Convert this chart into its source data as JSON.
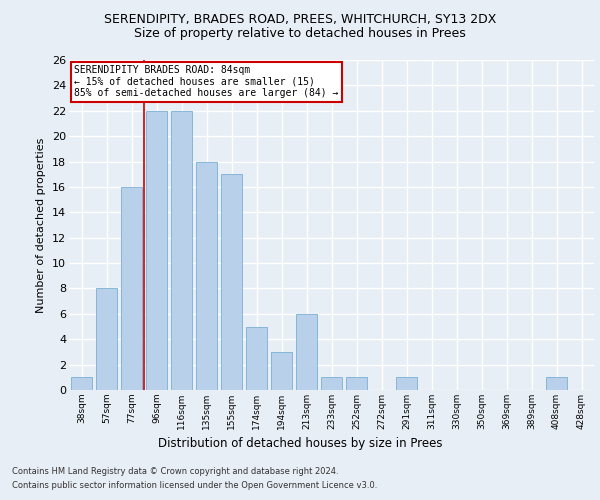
{
  "title1": "SERENDIPITY, BRADES ROAD, PREES, WHITCHURCH, SY13 2DX",
  "title2": "Size of property relative to detached houses in Prees",
  "xlabel": "Distribution of detached houses by size in Prees",
  "ylabel": "Number of detached properties",
  "categories": [
    "38sqm",
    "57sqm",
    "77sqm",
    "96sqm",
    "116sqm",
    "135sqm",
    "155sqm",
    "174sqm",
    "194sqm",
    "213sqm",
    "233sqm",
    "252sqm",
    "272sqm",
    "291sqm",
    "311sqm",
    "330sqm",
    "350sqm",
    "369sqm",
    "389sqm",
    "408sqm",
    "428sqm"
  ],
  "values": [
    1,
    8,
    16,
    22,
    22,
    18,
    17,
    5,
    3,
    6,
    1,
    1,
    0,
    1,
    0,
    0,
    0,
    0,
    0,
    1,
    0
  ],
  "bar_color": "#b8d0ea",
  "bar_edge_color": "#7aafd4",
  "vline_x": 2.5,
  "vline_color": "#cc0000",
  "annotation_text": "SERENDIPITY BRADES ROAD: 84sqm\n← 15% of detached houses are smaller (15)\n85% of semi-detached houses are larger (84) →",
  "annotation_box_color": "#ffffff",
  "annotation_box_edge": "#cc0000",
  "ylim": [
    0,
    26
  ],
  "yticks": [
    0,
    2,
    4,
    6,
    8,
    10,
    12,
    14,
    16,
    18,
    20,
    22,
    24,
    26
  ],
  "footnote1": "Contains HM Land Registry data © Crown copyright and database right 2024.",
  "footnote2": "Contains public sector information licensed under the Open Government Licence v3.0.",
  "bg_color": "#e8eef5",
  "plot_bg_color": "#e8eef5",
  "title1_fontsize": 9,
  "title2_fontsize": 9,
  "grid_color": "#ffffff",
  "tick_label_fontsize": 6.5,
  "ylabel_fontsize": 8,
  "xlabel_fontsize": 8.5,
  "footnote_fontsize": 6,
  "bar_width": 0.85
}
